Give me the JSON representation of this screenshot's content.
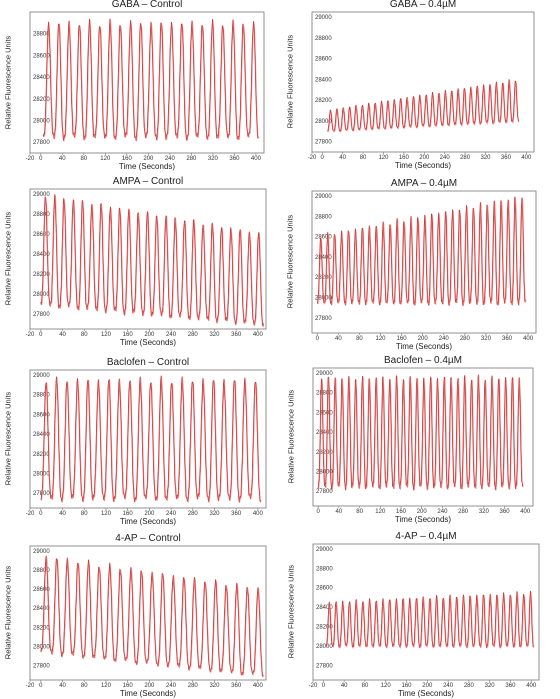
{
  "chart_data": [
    {
      "type": "line",
      "title": "GABA – Control",
      "xlabel": "Time (Seconds)",
      "ylabel": "Relative Fluorescence Units",
      "x_ticks": [
        "-20",
        "0",
        "40",
        "80",
        "120",
        "160",
        "200",
        "240",
        "280",
        "320",
        "360",
        "400"
      ],
      "y_ticks": [
        "27800",
        "28000",
        "28200",
        "28400",
        "28600",
        "28800"
      ],
      "xlim": [
        -20,
        415
      ],
      "ylim": [
        27700,
        29000
      ],
      "grid": false,
      "series": [
        {
          "peaks": 21,
          "low": 27850,
          "high": 28900,
          "x_start": 5,
          "x_end": 405,
          "color": "#cc2b2b"
        }
      ]
    },
    {
      "type": "line",
      "title": "GABA – 0.4µM",
      "xlabel": "Time (Seconds)",
      "ylabel": "Relative Fluorescence Units",
      "x_ticks": [
        "-20",
        "0",
        "40",
        "80",
        "120",
        "160",
        "200",
        "240",
        "280",
        "320",
        "360",
        "400"
      ],
      "y_ticks": [
        "27800",
        "28000",
        "28200",
        "28400",
        "28600",
        "28800",
        "29000"
      ],
      "xlim": [
        -20,
        415
      ],
      "ylim": [
        27700,
        29050
      ],
      "grid": false,
      "series": [
        {
          "peaks": 30,
          "low_start": 27900,
          "low_end": 28000,
          "high_start": 28100,
          "high_end": 28400,
          "x_start": 10,
          "x_end": 385,
          "color": "#cc2b2b"
        }
      ]
    },
    {
      "type": "line",
      "title": "AMPA – Control",
      "xlabel": "Time (Seconds)",
      "ylabel": "Relative Fluorescence Units",
      "x_ticks": [
        "-20",
        "0",
        "40",
        "80",
        "120",
        "160",
        "200",
        "240",
        "280",
        "320",
        "360",
        "400"
      ],
      "y_ticks": [
        "27800",
        "28000",
        "28200",
        "28400",
        "28600",
        "28800",
        "29000"
      ],
      "xlim": [
        -20,
        415
      ],
      "ylim": [
        27650,
        29050
      ],
      "grid": false,
      "series": [
        {
          "peaks": 24,
          "low_start": 27900,
          "low_end": 27700,
          "high_start": 29000,
          "high_end": 28600,
          "x_start": 0,
          "x_end": 410,
          "color": "#cc2b2b"
        }
      ]
    },
    {
      "type": "line",
      "title": "AMPA – 0.4µM",
      "xlabel": "Time (Seconds)",
      "ylabel": "Relative Fluorescence Units",
      "x_ticks": [
        "0",
        "40",
        "80",
        "120",
        "160",
        "200",
        "240",
        "280",
        "320",
        "360",
        "400"
      ],
      "y_ticks": [
        "27800",
        "28000",
        "28200",
        "28400",
        "28600",
        "28800",
        "29000"
      ],
      "xlim": [
        -10,
        415
      ],
      "ylim": [
        27650,
        29050
      ],
      "grid": false,
      "series": [
        {
          "peaks": 30,
          "low": 27950,
          "high_start": 28600,
          "high_end": 29000,
          "x_start": 0,
          "x_end": 395,
          "color": "#cc2b2b"
        }
      ]
    },
    {
      "type": "line",
      "title": "Baclofen – Control",
      "xlabel": "Time (Seconds)",
      "ylabel": "Relative Fluorescence Units",
      "x_ticks": [
        "-20",
        "0",
        "40",
        "80",
        "120",
        "160",
        "200",
        "240",
        "280",
        "320",
        "360",
        "400"
      ],
      "y_ticks": [
        "27800",
        "28000",
        "28200",
        "28400",
        "28600",
        "28800",
        "29000"
      ],
      "xlim": [
        -20,
        415
      ],
      "ylim": [
        27650,
        29050
      ],
      "grid": false,
      "series": [
        {
          "peaks": 21,
          "low": 27750,
          "high": 28950,
          "x_start": 0,
          "x_end": 405,
          "color": "#cc2b2b"
        }
      ]
    },
    {
      "type": "line",
      "title": "Baclofen – 0.4µM",
      "xlabel": "Time (Seconds)",
      "ylabel": "Relative Fluorescence Units",
      "x_ticks": [
        "0",
        "40",
        "80",
        "120",
        "160",
        "200",
        "240",
        "280",
        "320",
        "360",
        "400"
      ],
      "y_ticks": [
        "27800",
        "28000",
        "28200",
        "28400",
        "28600",
        "28800",
        "29000"
      ],
      "xlim": [
        -10,
        415
      ],
      "ylim": [
        27650,
        29050
      ],
      "grid": false,
      "series": [
        {
          "peaks": 30,
          "low": 27850,
          "high": 28950,
          "x_start": 0,
          "x_end": 395,
          "color": "#cc2b2b"
        }
      ]
    },
    {
      "type": "line",
      "title": "4-AP – Control",
      "xlabel": "Time (Seconds)",
      "ylabel": "Relative Fluorescence Units",
      "x_ticks": [
        "-20",
        "0",
        "40",
        "80",
        "120",
        "160",
        "200",
        "240",
        "280",
        "320",
        "360",
        "400"
      ],
      "y_ticks": [
        "27800",
        "28000",
        "28200",
        "28400",
        "28600",
        "28800",
        "29000"
      ],
      "xlim": [
        -20,
        415
      ],
      "ylim": [
        27650,
        29050
      ],
      "grid": false,
      "series": [
        {
          "peaks": 21,
          "low_start": 27950,
          "low_end": 27700,
          "high_start": 28950,
          "high_end": 28600,
          "x_start": 0,
          "x_end": 410,
          "color": "#cc2b2b"
        }
      ]
    },
    {
      "type": "line",
      "title": "4-AP – 0.4µM",
      "xlabel": "Time (Seconds)",
      "ylabel": "Relative Fluorescence Units",
      "x_ticks": [
        "-20",
        "0",
        "40",
        "80",
        "120",
        "160",
        "200",
        "240",
        "280",
        "320",
        "360",
        "400"
      ],
      "y_ticks": [
        "27800",
        "28000",
        "28200",
        "28400",
        "28600",
        "28800",
        "29000"
      ],
      "xlim": [
        -20,
        415
      ],
      "ylim": [
        27650,
        29050
      ],
      "grid": false,
      "series": [
        {
          "peaks": 31,
          "low": 28000,
          "high_start": 28450,
          "high_end": 28550,
          "x_start": 5,
          "x_end": 405,
          "color": "#cc2b2b"
        }
      ]
    }
  ]
}
